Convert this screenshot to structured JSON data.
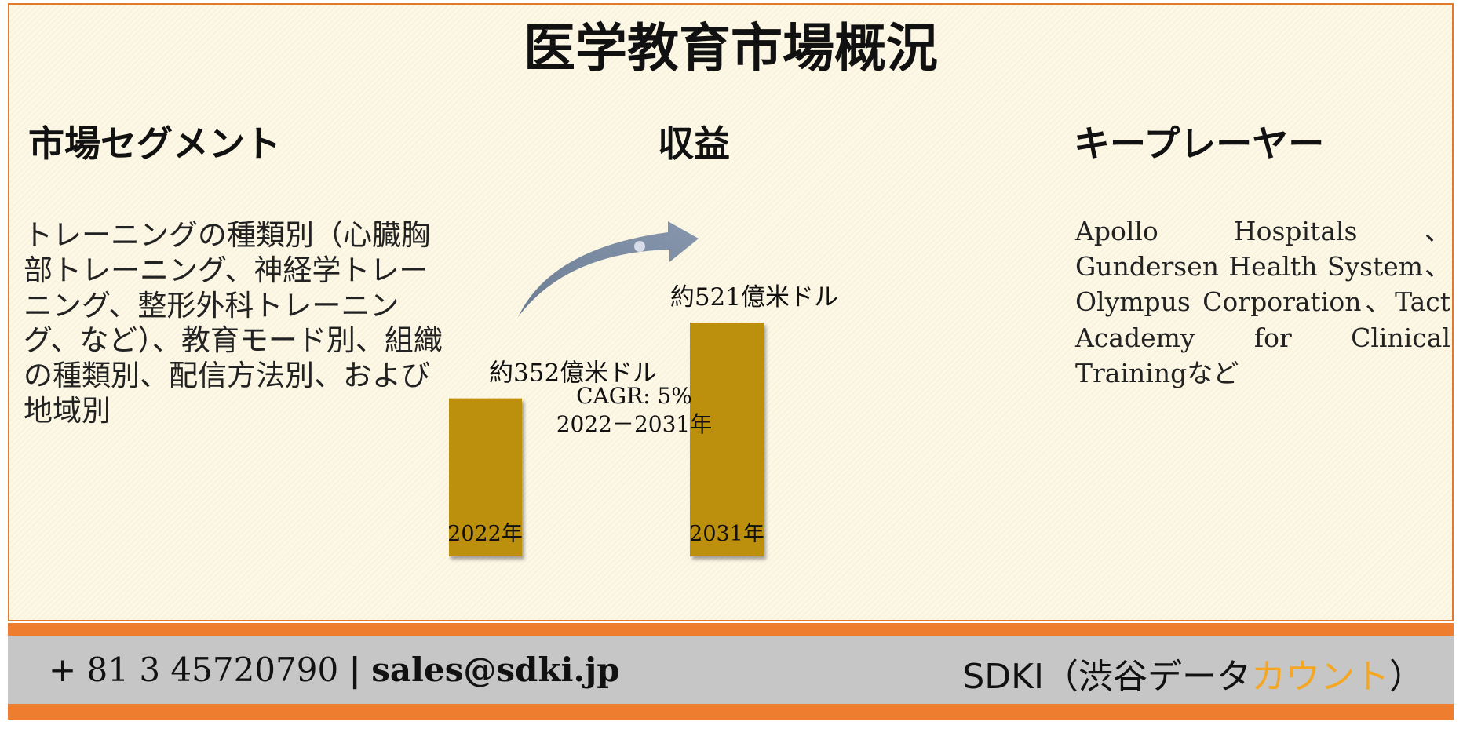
{
  "title": "医学教育市場概況",
  "segment": {
    "heading": "市場セグメント",
    "text": "トレーニングの種類別（心臓胸部トレーニング、神経学トレーニング、整形外科トレーニング、など）、教育モード別、組織の種類別、配信方法別、および地域別"
  },
  "revenue": {
    "heading": "収益"
  },
  "players": {
    "heading": "キープレーヤー",
    "text": "Apollo Hospitals、Gundersen Health System、Olympus Corporation、Tact Academy for Clinical Trainingなど"
  },
  "chart_data": {
    "type": "bar",
    "title": "",
    "xlabel": "",
    "ylabel": "",
    "unit": "億米ドル",
    "categories": [
      "2022年",
      "2031年"
    ],
    "values": [
      352,
      521
    ],
    "value_labels": [
      "約352億米ドル",
      "約521億米ドル"
    ],
    "ylim": [
      0,
      600
    ],
    "bar_color": "#bc900a",
    "annotation": {
      "lines": [
        "CAGR: 5%",
        "2022－2031年"
      ]
    },
    "grid": false,
    "legend": "none"
  },
  "footer": {
    "phone": "+ 81 3 45720790",
    "separator": "|",
    "email": "sales@sdki.jp",
    "brand_prefix": "SDKI（渋谷データ",
    "brand_accent": "カウント",
    "brand_suffix": "）",
    "accent_color": "#f5a623",
    "band_color": "#ee7d30"
  }
}
